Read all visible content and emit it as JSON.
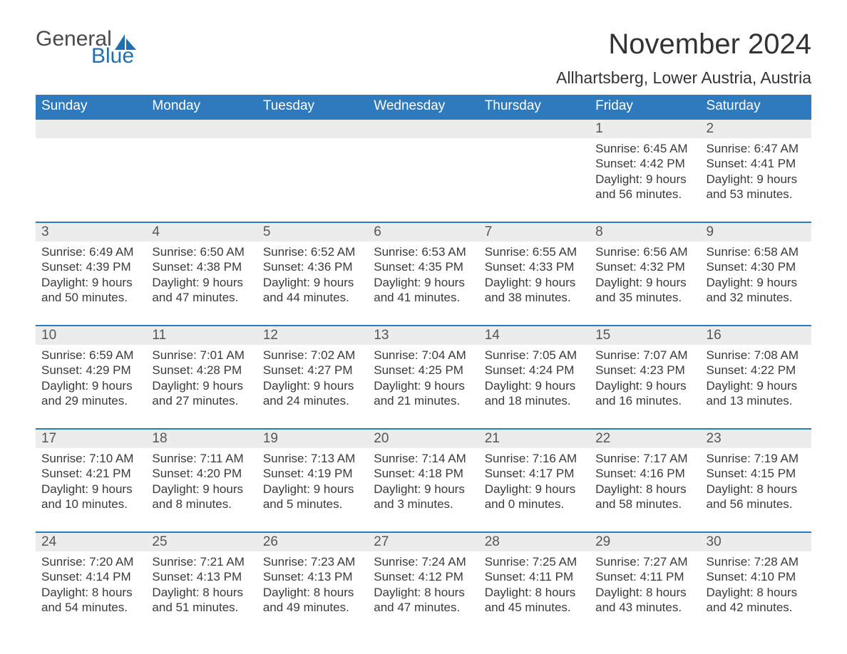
{
  "brand": {
    "text_general": "General",
    "text_blue": "Blue",
    "sail_color": "#1f6fb2",
    "general_color": "#4a4a4a"
  },
  "title": {
    "month": "November 2024",
    "location": "Allhartsberg, Lower Austria, Austria"
  },
  "colors": {
    "header_bg": "#2f79bd",
    "header_text": "#ffffff",
    "row_divider": "#2f79bd",
    "daynum_bg": "#ececec",
    "daynum_text": "#565656",
    "body_text": "#3a3a3a",
    "background": "#ffffff"
  },
  "weekdays": [
    "Sunday",
    "Monday",
    "Tuesday",
    "Wednesday",
    "Thursday",
    "Friday",
    "Saturday"
  ],
  "weeks": [
    [
      {
        "n": "",
        "sunrise": "",
        "sunset": "",
        "daylight": ""
      },
      {
        "n": "",
        "sunrise": "",
        "sunset": "",
        "daylight": ""
      },
      {
        "n": "",
        "sunrise": "",
        "sunset": "",
        "daylight": ""
      },
      {
        "n": "",
        "sunrise": "",
        "sunset": "",
        "daylight": ""
      },
      {
        "n": "",
        "sunrise": "",
        "sunset": "",
        "daylight": ""
      },
      {
        "n": "1",
        "sunrise": "Sunrise: 6:45 AM",
        "sunset": "Sunset: 4:42 PM",
        "daylight": "Daylight: 9 hours and 56 minutes."
      },
      {
        "n": "2",
        "sunrise": "Sunrise: 6:47 AM",
        "sunset": "Sunset: 4:41 PM",
        "daylight": "Daylight: 9 hours and 53 minutes."
      }
    ],
    [
      {
        "n": "3",
        "sunrise": "Sunrise: 6:49 AM",
        "sunset": "Sunset: 4:39 PM",
        "daylight": "Daylight: 9 hours and 50 minutes."
      },
      {
        "n": "4",
        "sunrise": "Sunrise: 6:50 AM",
        "sunset": "Sunset: 4:38 PM",
        "daylight": "Daylight: 9 hours and 47 minutes."
      },
      {
        "n": "5",
        "sunrise": "Sunrise: 6:52 AM",
        "sunset": "Sunset: 4:36 PM",
        "daylight": "Daylight: 9 hours and 44 minutes."
      },
      {
        "n": "6",
        "sunrise": "Sunrise: 6:53 AM",
        "sunset": "Sunset: 4:35 PM",
        "daylight": "Daylight: 9 hours and 41 minutes."
      },
      {
        "n": "7",
        "sunrise": "Sunrise: 6:55 AM",
        "sunset": "Sunset: 4:33 PM",
        "daylight": "Daylight: 9 hours and 38 minutes."
      },
      {
        "n": "8",
        "sunrise": "Sunrise: 6:56 AM",
        "sunset": "Sunset: 4:32 PM",
        "daylight": "Daylight: 9 hours and 35 minutes."
      },
      {
        "n": "9",
        "sunrise": "Sunrise: 6:58 AM",
        "sunset": "Sunset: 4:30 PM",
        "daylight": "Daylight: 9 hours and 32 minutes."
      }
    ],
    [
      {
        "n": "10",
        "sunrise": "Sunrise: 6:59 AM",
        "sunset": "Sunset: 4:29 PM",
        "daylight": "Daylight: 9 hours and 29 minutes."
      },
      {
        "n": "11",
        "sunrise": "Sunrise: 7:01 AM",
        "sunset": "Sunset: 4:28 PM",
        "daylight": "Daylight: 9 hours and 27 minutes."
      },
      {
        "n": "12",
        "sunrise": "Sunrise: 7:02 AM",
        "sunset": "Sunset: 4:27 PM",
        "daylight": "Daylight: 9 hours and 24 minutes."
      },
      {
        "n": "13",
        "sunrise": "Sunrise: 7:04 AM",
        "sunset": "Sunset: 4:25 PM",
        "daylight": "Daylight: 9 hours and 21 minutes."
      },
      {
        "n": "14",
        "sunrise": "Sunrise: 7:05 AM",
        "sunset": "Sunset: 4:24 PM",
        "daylight": "Daylight: 9 hours and 18 minutes."
      },
      {
        "n": "15",
        "sunrise": "Sunrise: 7:07 AM",
        "sunset": "Sunset: 4:23 PM",
        "daylight": "Daylight: 9 hours and 16 minutes."
      },
      {
        "n": "16",
        "sunrise": "Sunrise: 7:08 AM",
        "sunset": "Sunset: 4:22 PM",
        "daylight": "Daylight: 9 hours and 13 minutes."
      }
    ],
    [
      {
        "n": "17",
        "sunrise": "Sunrise: 7:10 AM",
        "sunset": "Sunset: 4:21 PM",
        "daylight": "Daylight: 9 hours and 10 minutes."
      },
      {
        "n": "18",
        "sunrise": "Sunrise: 7:11 AM",
        "sunset": "Sunset: 4:20 PM",
        "daylight": "Daylight: 9 hours and 8 minutes."
      },
      {
        "n": "19",
        "sunrise": "Sunrise: 7:13 AM",
        "sunset": "Sunset: 4:19 PM",
        "daylight": "Daylight: 9 hours and 5 minutes."
      },
      {
        "n": "20",
        "sunrise": "Sunrise: 7:14 AM",
        "sunset": "Sunset: 4:18 PM",
        "daylight": "Daylight: 9 hours and 3 minutes."
      },
      {
        "n": "21",
        "sunrise": "Sunrise: 7:16 AM",
        "sunset": "Sunset: 4:17 PM",
        "daylight": "Daylight: 9 hours and 0 minutes."
      },
      {
        "n": "22",
        "sunrise": "Sunrise: 7:17 AM",
        "sunset": "Sunset: 4:16 PM",
        "daylight": "Daylight: 8 hours and 58 minutes."
      },
      {
        "n": "23",
        "sunrise": "Sunrise: 7:19 AM",
        "sunset": "Sunset: 4:15 PM",
        "daylight": "Daylight: 8 hours and 56 minutes."
      }
    ],
    [
      {
        "n": "24",
        "sunrise": "Sunrise: 7:20 AM",
        "sunset": "Sunset: 4:14 PM",
        "daylight": "Daylight: 8 hours and 54 minutes."
      },
      {
        "n": "25",
        "sunrise": "Sunrise: 7:21 AM",
        "sunset": "Sunset: 4:13 PM",
        "daylight": "Daylight: 8 hours and 51 minutes."
      },
      {
        "n": "26",
        "sunrise": "Sunrise: 7:23 AM",
        "sunset": "Sunset: 4:13 PM",
        "daylight": "Daylight: 8 hours and 49 minutes."
      },
      {
        "n": "27",
        "sunrise": "Sunrise: 7:24 AM",
        "sunset": "Sunset: 4:12 PM",
        "daylight": "Daylight: 8 hours and 47 minutes."
      },
      {
        "n": "28",
        "sunrise": "Sunrise: 7:25 AM",
        "sunset": "Sunset: 4:11 PM",
        "daylight": "Daylight: 8 hours and 45 minutes."
      },
      {
        "n": "29",
        "sunrise": "Sunrise: 7:27 AM",
        "sunset": "Sunset: 4:11 PM",
        "daylight": "Daylight: 8 hours and 43 minutes."
      },
      {
        "n": "30",
        "sunrise": "Sunrise: 7:28 AM",
        "sunset": "Sunset: 4:10 PM",
        "daylight": "Daylight: 8 hours and 42 minutes."
      }
    ]
  ]
}
